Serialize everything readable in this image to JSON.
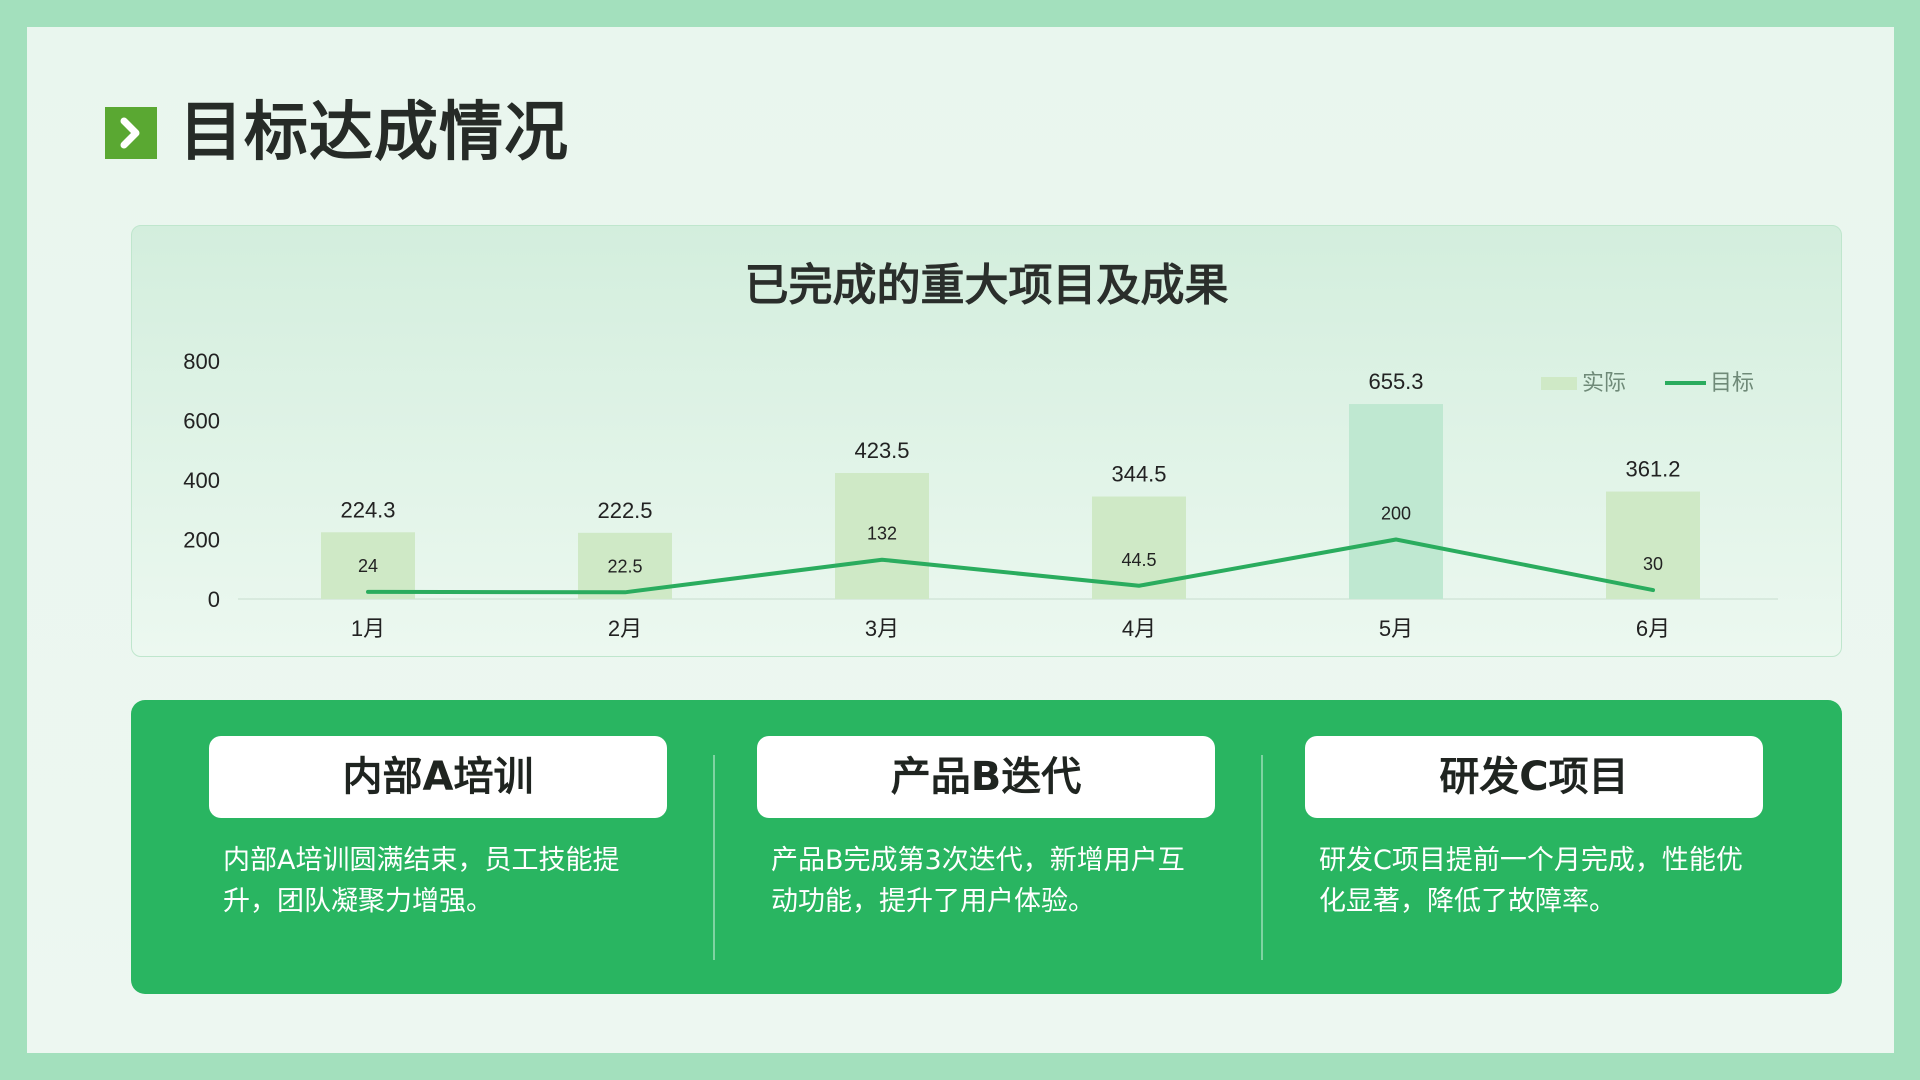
{
  "page": {
    "title": "目标达成情况"
  },
  "chart_data": {
    "type": "bar",
    "title": "已完成的重大项目及成果",
    "categories": [
      "1月",
      "2月",
      "3月",
      "4月",
      "5月",
      "6月"
    ],
    "series": [
      {
        "name": "实际",
        "type": "bar",
        "values": [
          224.3,
          222.5,
          423.5,
          344.5,
          655.3,
          361.2
        ]
      },
      {
        "name": "目标",
        "type": "line",
        "values": [
          24,
          22.5,
          132,
          44.5,
          200,
          30
        ]
      }
    ],
    "yticks": [
      "0",
      "200",
      "400",
      "600",
      "800"
    ],
    "ylim": [
      0,
      800
    ],
    "legend_position": "top-right",
    "grid": false,
    "colors": {
      "bar": "#cfe9c6",
      "bar_highlight": "#bfe8d1",
      "line": "#2aac5e"
    }
  },
  "projects": [
    {
      "title": "内部A培训",
      "desc": "内部A培训圆满结束，员工技能提升，团队凝聚力增强。"
    },
    {
      "title": "产品B迭代",
      "desc": "产品B完成第3次迭代，新增用户互动功能，提升了用户体验。"
    },
    {
      "title": "研发C项目",
      "desc": "研发C项目提前一个月完成，性能优化显著，降低了故障率。"
    }
  ],
  "colors": {
    "frame": "#a3e0bd",
    "accent": "#5aa832",
    "panel": "#29b561"
  },
  "icons": {
    "title_mark": "chevron-right-icon"
  }
}
